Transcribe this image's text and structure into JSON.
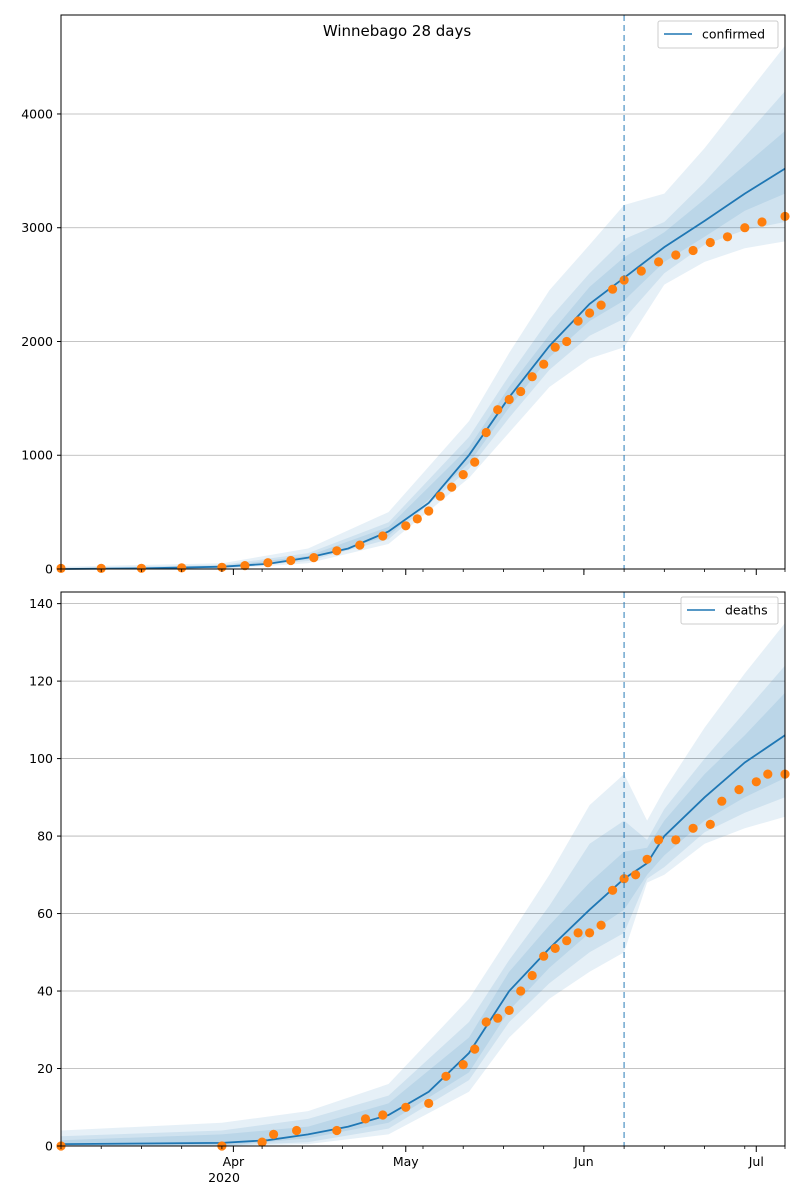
{
  "figure": {
    "title": "Winnebago 28 days",
    "colors": {
      "model": "#1f77b4",
      "observed": "#ff7f0e",
      "band": "#1f77b4",
      "grid": "#b0b0b0",
      "forecast_line": "#1f77b4"
    }
  },
  "chart_data": [
    {
      "type": "line",
      "panel": "top",
      "title": "Winnebago 28 days",
      "legend": {
        "position": "top-right",
        "entries": [
          "confirmed"
        ]
      },
      "grid": {
        "x": false,
        "y": true
      },
      "x_range": [
        "2020-03-02",
        "2020-07-06"
      ],
      "ylim": [
        0,
        4870
      ],
      "y_ticks": [
        0,
        1000,
        2000,
        3000,
        4000
      ],
      "forecast_start": "2020-06-08",
      "series": [
        {
          "name": "confirmed",
          "x": [
            "2020-03-02",
            "2020-03-16",
            "2020-03-30",
            "2020-04-07",
            "2020-04-14",
            "2020-04-21",
            "2020-04-28",
            "2020-05-05",
            "2020-05-12",
            "2020-05-19",
            "2020-05-26",
            "2020-06-02",
            "2020-06-08",
            "2020-06-15",
            "2020-06-22",
            "2020-06-29",
            "2020-07-06"
          ],
          "values": [
            0,
            5,
            20,
            45,
            100,
            180,
            330,
            580,
            1000,
            1510,
            1960,
            2330,
            2560,
            2830,
            3060,
            3300,
            3520
          ]
        }
      ],
      "bands": {
        "x": [
          "2020-03-02",
          "2020-03-30",
          "2020-04-14",
          "2020-04-28",
          "2020-05-12",
          "2020-05-19",
          "2020-05-26",
          "2020-06-02",
          "2020-06-08",
          "2020-06-15",
          "2020-06-22",
          "2020-06-29",
          "2020-07-06"
        ],
        "outer_low": [
          0,
          0,
          50,
          220,
          800,
          1200,
          1600,
          1850,
          1950,
          2500,
          2700,
          2820,
          2880
        ],
        "outer_high": [
          20,
          50,
          180,
          500,
          1300,
          1900,
          2450,
          2850,
          3200,
          3300,
          3700,
          4150,
          4600
        ],
        "mid_low": [
          0,
          5,
          70,
          260,
          880,
          1330,
          1750,
          2050,
          2200,
          2600,
          2850,
          2980,
          3050
        ],
        "mid_high": [
          10,
          35,
          140,
          410,
          1160,
          1700,
          2200,
          2600,
          2900,
          3050,
          3400,
          3800,
          4200
        ],
        "inner_low": [
          0,
          12,
          85,
          290,
          930,
          1420,
          1860,
          2180,
          2360,
          2700,
          2920,
          3150,
          3300
        ],
        "inner_high": [
          6,
          25,
          115,
          370,
          1070,
          1600,
          2060,
          2480,
          2740,
          2960,
          3250,
          3550,
          3850
        ]
      },
      "observed": {
        "x": [
          "2020-03-02",
          "2020-03-09",
          "2020-03-16",
          "2020-03-23",
          "2020-03-30",
          "2020-04-03",
          "2020-04-07",
          "2020-04-11",
          "2020-04-15",
          "2020-04-19",
          "2020-04-23",
          "2020-04-27",
          "2020-05-01",
          "2020-05-03",
          "2020-05-05",
          "2020-05-07",
          "2020-05-09",
          "2020-05-11",
          "2020-05-13",
          "2020-05-15",
          "2020-05-17",
          "2020-05-19",
          "2020-05-21",
          "2020-05-23",
          "2020-05-25",
          "2020-05-27",
          "2020-05-29",
          "2020-05-31",
          "2020-06-02",
          "2020-06-04",
          "2020-06-06",
          "2020-06-08",
          "2020-06-11",
          "2020-06-14",
          "2020-06-17",
          "2020-06-20",
          "2020-06-23",
          "2020-06-26",
          "2020-06-29",
          "2020-07-02",
          "2020-07-06"
        ],
        "values": [
          5,
          5,
          6,
          10,
          15,
          30,
          55,
          75,
          100,
          160,
          210,
          290,
          380,
          440,
          510,
          640,
          720,
          830,
          940,
          1200,
          1400,
          1490,
          1560,
          1690,
          1800,
          1950,
          2000,
          2180,
          2250,
          2320,
          2460,
          2540,
          2620,
          2700,
          2760,
          2800,
          2870,
          2920,
          3000,
          3050,
          3100
        ]
      }
    },
    {
      "type": "line",
      "panel": "bottom",
      "title": "",
      "legend": {
        "position": "top-right",
        "entries": [
          "deaths"
        ]
      },
      "grid": {
        "x": false,
        "y": true
      },
      "x_range": [
        "2020-03-02",
        "2020-07-06"
      ],
      "ylim": [
        0,
        143
      ],
      "y_ticks": [
        0,
        20,
        40,
        60,
        80,
        100,
        120,
        140
      ],
      "x_ticks": [
        "Apr",
        "May",
        "Jun",
        "Jul"
      ],
      "x_year_label": "2020",
      "forecast_start": "2020-06-08",
      "series": [
        {
          "name": "deaths",
          "x": [
            "2020-03-02",
            "2020-03-30",
            "2020-04-07",
            "2020-04-14",
            "2020-04-21",
            "2020-04-28",
            "2020-05-05",
            "2020-05-12",
            "2020-05-19",
            "2020-05-26",
            "2020-06-02",
            "2020-06-08",
            "2020-06-12",
            "2020-06-15",
            "2020-06-22",
            "2020-06-29",
            "2020-07-06"
          ],
          "values": [
            0.5,
            0.8,
            1.5,
            3,
            5,
            8,
            14,
            24,
            40,
            51,
            61,
            69,
            73,
            80,
            90,
            99,
            106
          ]
        }
      ],
      "bands": {
        "x": [
          "2020-03-02",
          "2020-03-30",
          "2020-04-14",
          "2020-04-28",
          "2020-05-12",
          "2020-05-19",
          "2020-05-26",
          "2020-06-02",
          "2020-06-08",
          "2020-06-12",
          "2020-06-15",
          "2020-06-22",
          "2020-06-29",
          "2020-07-06"
        ],
        "outer_low": [
          0,
          0,
          0.5,
          3,
          14,
          28,
          38,
          45,
          50,
          68,
          70,
          78,
          82,
          85
        ],
        "outer_high": [
          4,
          6,
          9,
          16,
          38,
          54,
          70,
          88,
          96,
          84,
          92,
          108,
          122,
          135
        ],
        "mid_low": [
          0,
          0,
          1,
          4.5,
          17,
          32,
          42,
          50,
          55,
          69,
          72,
          81,
          86,
          90
        ],
        "mid_high": [
          2.5,
          4,
          7,
          13,
          32,
          48,
          62,
          78,
          84,
          79,
          87,
          100,
          112,
          124
        ],
        "inner_low": [
          0,
          0,
          2,
          6,
          19,
          35,
          46,
          55,
          61,
          70,
          75,
          84,
          90,
          95
        ],
        "inner_high": [
          1.5,
          3,
          5,
          11,
          28,
          45,
          57,
          68,
          76,
          77,
          84,
          96,
          106,
          117
        ]
      },
      "observed": {
        "x": [
          "2020-03-02",
          "2020-03-30",
          "2020-04-06",
          "2020-04-08",
          "2020-04-12",
          "2020-04-19",
          "2020-04-24",
          "2020-04-27",
          "2020-05-01",
          "2020-05-05",
          "2020-05-08",
          "2020-05-11",
          "2020-05-13",
          "2020-05-15",
          "2020-05-17",
          "2020-05-19",
          "2020-05-21",
          "2020-05-23",
          "2020-05-25",
          "2020-05-27",
          "2020-05-29",
          "2020-05-31",
          "2020-06-02",
          "2020-06-04",
          "2020-06-06",
          "2020-06-08",
          "2020-06-10",
          "2020-06-12",
          "2020-06-14",
          "2020-06-17",
          "2020-06-20",
          "2020-06-23",
          "2020-06-25",
          "2020-06-28",
          "2020-07-01",
          "2020-07-03",
          "2020-07-06"
        ],
        "values": [
          0,
          0,
          1,
          3,
          4,
          4,
          7,
          8,
          10,
          11,
          18,
          21,
          25,
          32,
          33,
          35,
          40,
          44,
          49,
          51,
          53,
          55,
          55,
          57,
          66,
          69,
          70,
          74,
          79,
          79,
          82,
          83,
          89,
          92,
          94,
          96,
          96
        ]
      }
    }
  ]
}
